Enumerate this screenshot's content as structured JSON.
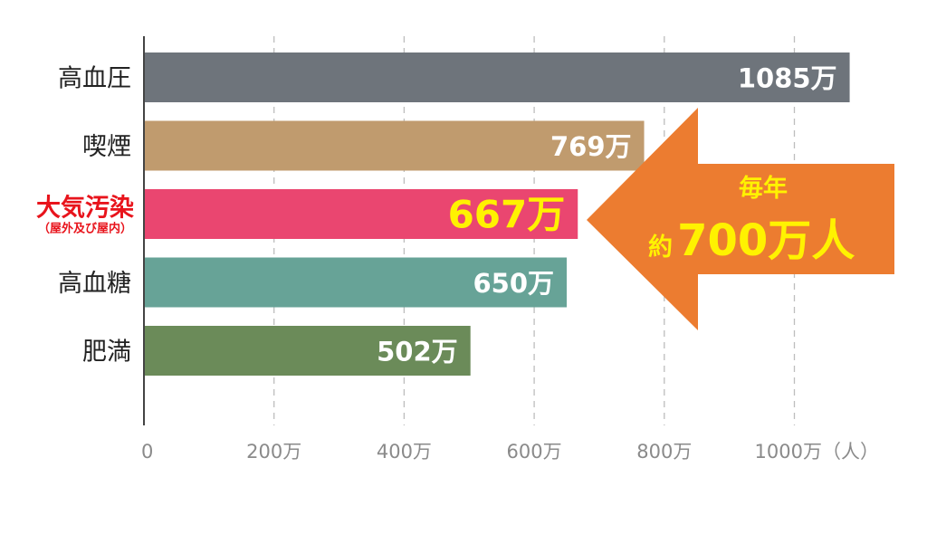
{
  "chart_data": {
    "type": "bar",
    "orientation": "horizontal",
    "categories": [
      "高血圧",
      "喫煙",
      "大気汚染",
      "高血糖",
      "肥満"
    ],
    "highlight_category_sub": "（屋外及び屋内）",
    "values": [
      1085,
      769,
      667,
      650,
      502
    ],
    "value_labels": [
      "1085万",
      "769万",
      "667万",
      "650万",
      "502万"
    ],
    "highlight_index": 2,
    "xlim": [
      0,
      1200
    ],
    "x_ticks": [
      0,
      200,
      400,
      600,
      800,
      1000
    ],
    "x_tick_labels": [
      "0",
      "200万",
      "400万",
      "600万",
      "800万",
      "1000万（人）"
    ],
    "grid": "vertical-dashed",
    "colors": {
      "bars": [
        "#6e747b",
        "#c09b6e",
        "#ea4670",
        "#67a397",
        "#6b8b59"
      ],
      "highlight_text": "#e8141c",
      "highlight_value": "#fff200",
      "arrow": "#ec7c30",
      "grid": "#bdbdbd",
      "axis": "#444444",
      "tick_text": "#8a8a8a"
    },
    "annotation": {
      "line1": "毎年",
      "prefix": "約",
      "main": "700万人"
    }
  }
}
